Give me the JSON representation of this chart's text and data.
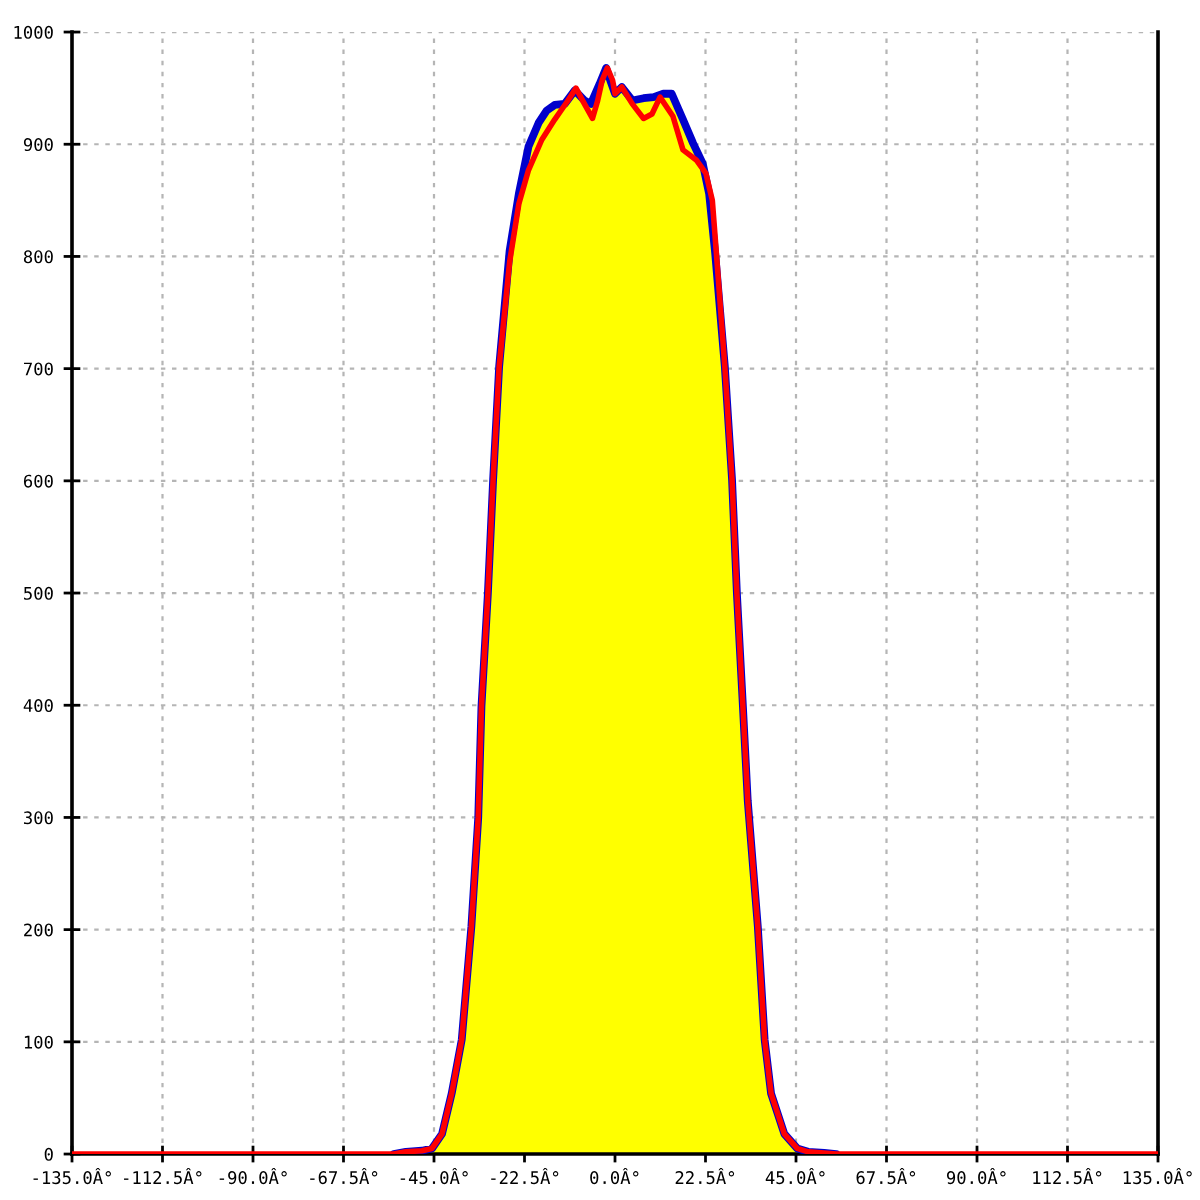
{
  "chart_data": {
    "type": "line",
    "xlim": [
      -135,
      135
    ],
    "xticks": [
      {
        "value": -135,
        "label": "-135.0Â°"
      },
      {
        "value": -112.5,
        "label": "-112.5Â°"
      },
      {
        "value": -90,
        "label": "-90.0Â°"
      },
      {
        "value": -67.5,
        "label": "-67.5Â°"
      },
      {
        "value": -45,
        "label": "-45.0Â°"
      },
      {
        "value": -22.5,
        "label": "-22.5Â°"
      },
      {
        "value": 0,
        "label": "0.0Â°"
      },
      {
        "value": 22.5,
        "label": "22.5Â°"
      },
      {
        "value": 45,
        "label": "45.0Â°"
      },
      {
        "value": 67.5,
        "label": "67.5Â°"
      },
      {
        "value": 90,
        "label": "90.0Â°"
      },
      {
        "value": 112.5,
        "label": "112.5Â°"
      },
      {
        "value": 135,
        "label": "135.0Â°"
      }
    ],
    "ylim": [
      0,
      1000
    ],
    "yticks": [
      0,
      100,
      200,
      300,
      400,
      500,
      600,
      700,
      800,
      900,
      1000
    ],
    "grid": true,
    "series": [
      {
        "type": "area",
        "color": "#ffff00",
        "x": [
          -48,
          -45.5,
          -43,
          -40.6,
          -38.1,
          -35.7,
          -34,
          -33.2,
          -31.6,
          -30.3,
          -28.8,
          -26.2,
          -23.9,
          -21.5,
          -19.0,
          -17.0,
          -15.0,
          -12.5,
          -10.0,
          -7.6,
          -6.0,
          -3.8,
          -2.2,
          -1.0,
          0,
          1.7,
          4.3,
          7.1,
          9.6,
          12.0,
          14.1,
          16.9,
          19.4,
          21.8,
          23.4,
          24.9,
          27.3,
          29.1,
          30.3,
          31.8,
          33.0,
          35.5,
          37.2,
          38.8,
          42.1,
          45.3,
          48
        ],
        "values": [
          3,
          5,
          18,
          54,
          102,
          203,
          300,
          399,
          500,
          601,
          702,
          805,
          856,
          898,
          919,
          930,
          935,
          936,
          948,
          939,
          936,
          954,
          968,
          955,
          945,
          951,
          939,
          941,
          942,
          945,
          945,
          922,
          901,
          883,
          856,
          803,
          702,
          601,
          500,
          399,
          315,
          203,
          102,
          54,
          18,
          5,
          2
        ]
      },
      {
        "type": "line",
        "color": "#0000cc",
        "x": [
          -55,
          -52,
          -48,
          -45.5,
          -43,
          -40.6,
          -38.1,
          -35.7,
          -34,
          -33.2,
          -31.6,
          -30.3,
          -28.8,
          -26.2,
          -23.9,
          -21.5,
          -19.0,
          -17.0,
          -15.0,
          -12.5,
          -10.0,
          -7.6,
          -6.0,
          -3.8,
          -2.2,
          -1.0,
          0,
          1.7,
          4.3,
          7.1,
          9.6,
          12.0,
          14.1,
          16.9,
          19.4,
          21.8,
          23.4,
          24.9,
          27.3,
          29.1,
          30.3,
          31.8,
          33.0,
          35.5,
          37.2,
          38.8,
          42.1,
          45.3,
          48,
          52,
          55
        ],
        "values": [
          0,
          2,
          3,
          5,
          18,
          54,
          102,
          203,
          300,
          399,
          500,
          601,
          702,
          805,
          856,
          898,
          919,
          930,
          935,
          936,
          948,
          939,
          936,
          954,
          968,
          955,
          945,
          951,
          939,
          941,
          942,
          945,
          945,
          922,
          901,
          883,
          856,
          803,
          702,
          601,
          500,
          399,
          315,
          203,
          102,
          54,
          18,
          5,
          2,
          1,
          0
        ]
      },
      {
        "type": "line",
        "color": "#ff0000",
        "x": [
          -135,
          -55,
          -52,
          -48,
          -45.5,
          -43,
          -40.6,
          -38.1,
          -35.7,
          -34,
          -33.2,
          -31.6,
          -30.3,
          -28.8,
          -26.2,
          -23.9,
          -21.5,
          -18.2,
          -15.0,
          -11.7,
          -9.7,
          -7.6,
          -5.6,
          -4.3,
          -3.2,
          -1.9,
          -0.6,
          0,
          1.7,
          4.3,
          7.1,
          9.2,
          11.2,
          14.4,
          16.9,
          20.2,
          22.6,
          24.2,
          25.2,
          27.3,
          29.1,
          30.3,
          31.8,
          33.0,
          35.5,
          37.2,
          38.8,
          42.1,
          45.3,
          48,
          52,
          55,
          135
        ],
        "values": [
          0,
          0,
          2,
          3,
          5,
          18,
          54,
          102,
          203,
          300,
          399,
          500,
          601,
          702,
          795,
          847,
          877,
          904,
          922,
          939,
          950,
          936,
          923,
          939,
          957,
          968,
          957,
          945,
          951,
          936,
          923,
          927,
          942,
          925,
          895,
          886,
          874,
          850,
          803,
          702,
          601,
          500,
          399,
          315,
          203,
          102,
          54,
          18,
          5,
          2,
          1,
          0,
          0
        ]
      }
    ]
  }
}
